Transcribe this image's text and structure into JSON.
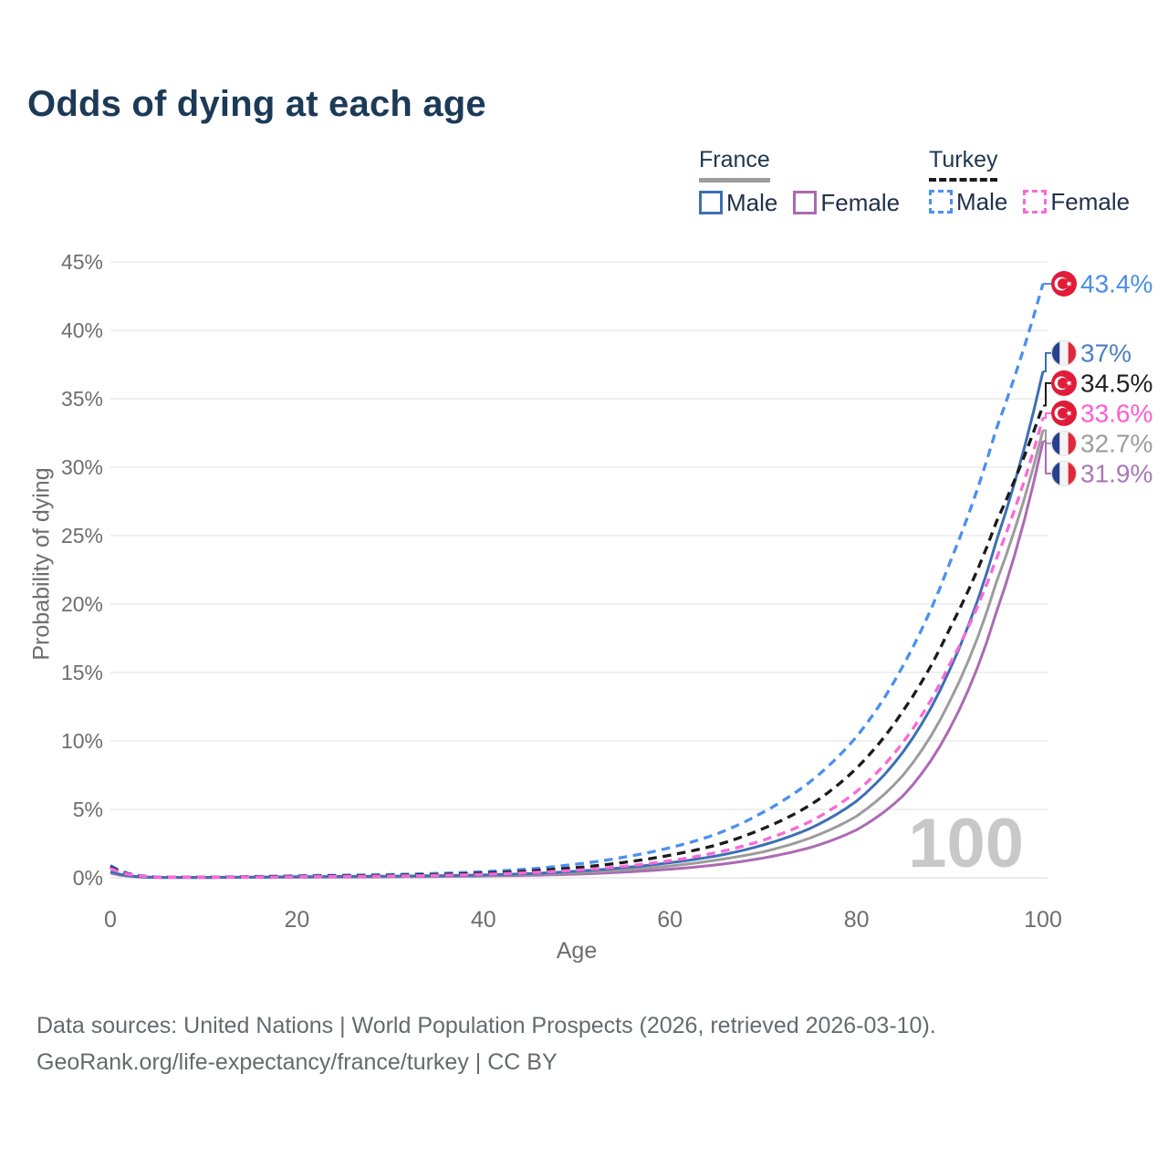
{
  "title": "Odds of dying at each age",
  "watermark_age": "100",
  "legend": {
    "groups": [
      {
        "country": "France",
        "line_style": "solid",
        "items": [
          {
            "label": "Male",
            "color_key": "france_male"
          },
          {
            "label": "Female",
            "color_key": "france_female"
          }
        ]
      },
      {
        "country": "Turkey",
        "line_style": "dashed",
        "items": [
          {
            "label": "Male",
            "color_key": "turkey_male"
          },
          {
            "label": "Female",
            "color_key": "turkey_female"
          }
        ]
      }
    ]
  },
  "axes": {
    "x_title": "Age",
    "y_title": "Probability of dying",
    "x_ticks": [
      "0",
      "20",
      "40",
      "60",
      "80",
      "100"
    ],
    "y_ticks": [
      "0%",
      "5%",
      "10%",
      "15%",
      "20%",
      "25%",
      "30%",
      "35%",
      "40%",
      "45%"
    ]
  },
  "colors": {
    "france_male": "#3d6fb5",
    "france_female": "#ac6ab3",
    "france_both": "#9c9c9c",
    "turkey_male": "#4b90f0",
    "turkey_female": "#fb68d8",
    "turkey_both": "#1b1b1b",
    "title_text": "#1c3a57",
    "axis_text": "#6e6e6e",
    "grid": "#ebebeb",
    "watermark": "#c8c8c8",
    "flag_france_blue": "#27418f",
    "flag_france_red": "#e0283c",
    "flag_turkey_red": "#e11c38"
  },
  "footer": {
    "line1": "Data sources: United Nations | World Population Prospects (2026, retrieved 2026-03-10).",
    "line2": "GeoRank.org/life-expectancy/france/turkey | CC BY"
  },
  "chart_data": {
    "type": "line",
    "title": "Odds of dying at each age",
    "xlabel": "Age",
    "ylabel": "Probability of dying",
    "xlim": [
      0,
      100
    ],
    "ylim": [
      0,
      45
    ],
    "y_unit": "percent",
    "grid": true,
    "legend_position": "top-right",
    "ages": [
      0,
      5,
      10,
      15,
      20,
      25,
      30,
      35,
      40,
      45,
      50,
      55,
      60,
      65,
      70,
      75,
      80,
      85,
      90,
      95,
      100
    ],
    "series": [
      {
        "name": "France female",
        "country": "France",
        "sex": "Female",
        "line_style": "solid",
        "color_key": "france_female",
        "flag": "france",
        "end_label": "31.9%",
        "end_value": 31.9,
        "end_label_color": "#a678b8",
        "values": [
          0.35,
          0.02,
          0.02,
          0.03,
          0.04,
          0.05,
          0.07,
          0.09,
          0.13,
          0.18,
          0.27,
          0.42,
          0.63,
          0.95,
          1.45,
          2.2,
          3.5,
          6.0,
          10.9,
          19.4,
          31.9
        ]
      },
      {
        "name": "France both sexes",
        "country": "France",
        "sex": "Both",
        "line_style": "solid",
        "color_key": "france_both",
        "flag": "france",
        "end_label": "32.7%",
        "end_value": 32.7,
        "end_label_color": "#9c9c9c",
        "values": [
          0.4,
          0.03,
          0.02,
          0.04,
          0.06,
          0.08,
          0.09,
          0.12,
          0.17,
          0.25,
          0.38,
          0.58,
          0.86,
          1.3,
          1.9,
          2.9,
          4.5,
          7.5,
          12.9,
          21.6,
          32.7
        ]
      },
      {
        "name": "France male",
        "country": "France",
        "sex": "Male",
        "line_style": "solid",
        "color_key": "france_male",
        "flag": "france",
        "end_label": "37%",
        "end_value": 37,
        "end_label_color": "#4a7fc4",
        "values": [
          0.45,
          0.03,
          0.03,
          0.05,
          0.08,
          0.1,
          0.12,
          0.15,
          0.21,
          0.31,
          0.48,
          0.74,
          1.1,
          1.6,
          2.4,
          3.6,
          5.6,
          9.2,
          15.2,
          24.6,
          37.0
        ]
      },
      {
        "name": "Turkey male",
        "country": "Turkey",
        "sex": "Male",
        "line_style": "dashed",
        "color_key": "turkey_male",
        "flag": "turkey",
        "end_label": "43.4%",
        "end_value": 43.4,
        "end_label_color": "#4a8ee8",
        "values": [
          0.9,
          0.06,
          0.05,
          0.09,
          0.15,
          0.19,
          0.24,
          0.32,
          0.45,
          0.65,
          1.0,
          1.5,
          2.2,
          3.2,
          4.8,
          7.0,
          10.3,
          15.5,
          23.0,
          32.8,
          43.4
        ]
      },
      {
        "name": "Turkey both sexes",
        "country": "Turkey",
        "sex": "Both",
        "line_style": "dashed",
        "color_key": "turkey_both",
        "flag": "turkey",
        "end_label": "34.5%",
        "end_value": 34.5,
        "end_label_color": "#1f1f1f",
        "values": [
          0.8,
          0.05,
          0.04,
          0.07,
          0.11,
          0.14,
          0.18,
          0.24,
          0.34,
          0.5,
          0.75,
          1.12,
          1.65,
          2.4,
          3.6,
          5.3,
          8.0,
          12.2,
          18.2,
          26.0,
          34.5
        ]
      },
      {
        "name": "Turkey female",
        "country": "Turkey",
        "sex": "Female",
        "line_style": "dashed",
        "color_key": "turkey_female",
        "flag": "turkey",
        "end_label": "33.6%",
        "end_value": 33.6,
        "end_label_color": "#ff5ad2",
        "values": [
          0.7,
          0.05,
          0.04,
          0.05,
          0.08,
          0.1,
          0.13,
          0.18,
          0.26,
          0.38,
          0.56,
          0.84,
          1.25,
          1.85,
          2.75,
          4.1,
          6.3,
          9.9,
          15.6,
          23.3,
          33.6
        ]
      }
    ]
  }
}
